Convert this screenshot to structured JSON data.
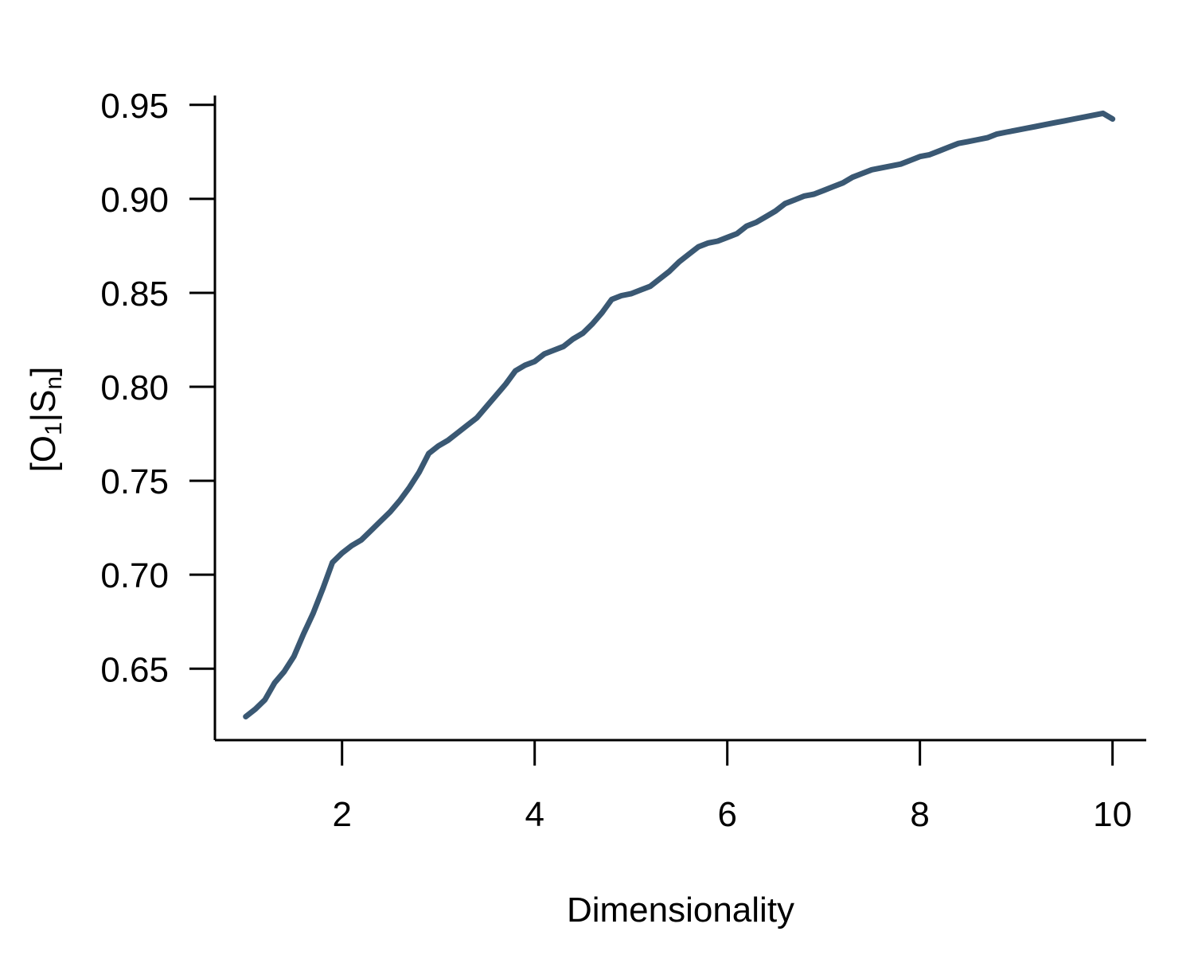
{
  "chart_data": {
    "type": "line",
    "title": "",
    "xlabel": "Dimensionality",
    "ylabel": {
      "prefix": "[O",
      "sub1": "1",
      "middle": "|S",
      "sub2": "n",
      "suffix": "]"
    },
    "xlim": [
      0.68,
      10.35
    ],
    "ylim": [
      0.612,
      0.955
    ],
    "xticks": [
      2,
      4,
      6,
      8,
      10
    ],
    "xtick_labels": [
      "2",
      "4",
      "6",
      "8",
      "10"
    ],
    "yticks": [
      0.65,
      0.7,
      0.75,
      0.8,
      0.85,
      0.9,
      0.95
    ],
    "ytick_labels": [
      "0.65",
      "0.70",
      "0.75",
      "0.80",
      "0.85",
      "0.90",
      "0.95"
    ],
    "grid": false,
    "series": [
      {
        "color": "#3a5873",
        "x": [
          1.0,
          1.1,
          1.2,
          1.3,
          1.4,
          1.5,
          1.6,
          1.7,
          1.8,
          1.9,
          2.0,
          2.1,
          2.2,
          2.3,
          2.4,
          2.5,
          2.6,
          2.7,
          2.8,
          2.9,
          3.0,
          3.1,
          3.2,
          3.3,
          3.4,
          3.5,
          3.6,
          3.7,
          3.8,
          3.9,
          4.0,
          4.1,
          4.2,
          4.3,
          4.4,
          4.5,
          4.6,
          4.7,
          4.8,
          4.9,
          5.0,
          5.1,
          5.2,
          5.3,
          5.4,
          5.5,
          5.6,
          5.7,
          5.8,
          5.9,
          6.0,
          6.1,
          6.2,
          6.3,
          6.4,
          6.5,
          6.6,
          6.7,
          6.8,
          6.9,
          7.0,
          7.1,
          7.2,
          7.3,
          7.4,
          7.5,
          7.6,
          7.7,
          7.8,
          7.9,
          8.0,
          8.1,
          8.2,
          8.3,
          8.4,
          8.5,
          8.6,
          8.7,
          8.8,
          8.9,
          9.0,
          9.1,
          9.2,
          9.3,
          9.4,
          9.5,
          9.6,
          9.7,
          9.8,
          9.9,
          10.0
        ],
        "y": [
          0.6245,
          0.6285,
          0.6335,
          0.6425,
          0.6485,
          0.6565,
          0.6685,
          0.6795,
          0.6925,
          0.7065,
          0.7115,
          0.7155,
          0.7185,
          0.7235,
          0.7285,
          0.7335,
          0.7395,
          0.7465,
          0.7545,
          0.7645,
          0.7685,
          0.7715,
          0.7755,
          0.7795,
          0.7835,
          0.7895,
          0.7955,
          0.8015,
          0.8085,
          0.8115,
          0.8135,
          0.8175,
          0.8195,
          0.8215,
          0.8255,
          0.8285,
          0.8335,
          0.8395,
          0.8465,
          0.8485,
          0.8495,
          0.8515,
          0.8535,
          0.8575,
          0.8615,
          0.8665,
          0.8705,
          0.8745,
          0.8765,
          0.8775,
          0.8795,
          0.8815,
          0.8855,
          0.8875,
          0.8905,
          0.8935,
          0.8975,
          0.8995,
          0.9015,
          0.9025,
          0.9045,
          0.9065,
          0.9085,
          0.9115,
          0.9135,
          0.9155,
          0.9165,
          0.9175,
          0.9185,
          0.9205,
          0.9225,
          0.9235,
          0.9255,
          0.9275,
          0.9295,
          0.9305,
          0.9315,
          0.9325,
          0.9345,
          0.9355,
          0.9365,
          0.9375,
          0.9385,
          0.9395,
          0.9405,
          0.9415,
          0.9425,
          0.9435,
          0.9445,
          0.9455,
          0.9425
        ]
      }
    ]
  }
}
